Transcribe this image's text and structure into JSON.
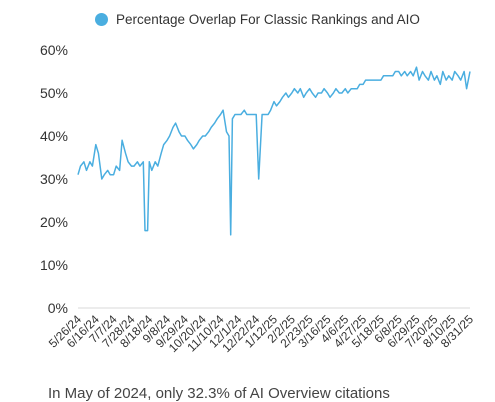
{
  "chart_data": {
    "type": "line",
    "title": "",
    "xlabel": "",
    "ylabel": "",
    "series": [
      {
        "name": "Percentage Overlap For Classic Rankings and AIO",
        "color": "#4aaee0",
        "points": [
          [
            "2024-05-26",
            31
          ],
          [
            "2024-05-29",
            33
          ],
          [
            "2024-06-02",
            34
          ],
          [
            "2024-06-05",
            32
          ],
          [
            "2024-06-09",
            34
          ],
          [
            "2024-06-12",
            33
          ],
          [
            "2024-06-16",
            38
          ],
          [
            "2024-06-19",
            36
          ],
          [
            "2024-06-23",
            30
          ],
          [
            "2024-06-26",
            31
          ],
          [
            "2024-06-30",
            32
          ],
          [
            "2024-07-03",
            31
          ],
          [
            "2024-07-07",
            31
          ],
          [
            "2024-07-10",
            33
          ],
          [
            "2024-07-14",
            32
          ],
          [
            "2024-07-17",
            39
          ],
          [
            "2024-07-21",
            36
          ],
          [
            "2024-07-24",
            34
          ],
          [
            "2024-07-28",
            33
          ],
          [
            "2024-07-31",
            33
          ],
          [
            "2024-08-04",
            34
          ],
          [
            "2024-08-07",
            33
          ],
          [
            "2024-08-11",
            34
          ],
          [
            "2024-08-13",
            18
          ],
          [
            "2024-08-16",
            18
          ],
          [
            "2024-08-18",
            34
          ],
          [
            "2024-08-21",
            32
          ],
          [
            "2024-08-25",
            34
          ],
          [
            "2024-08-28",
            33
          ],
          [
            "2024-09-01",
            36
          ],
          [
            "2024-09-04",
            38
          ],
          [
            "2024-09-08",
            39
          ],
          [
            "2024-09-11",
            40
          ],
          [
            "2024-09-15",
            42
          ],
          [
            "2024-09-18",
            43
          ],
          [
            "2024-09-22",
            41
          ],
          [
            "2024-09-25",
            40
          ],
          [
            "2024-09-29",
            40
          ],
          [
            "2024-10-02",
            39
          ],
          [
            "2024-10-06",
            38
          ],
          [
            "2024-10-09",
            37
          ],
          [
            "2024-10-13",
            38
          ],
          [
            "2024-10-16",
            39
          ],
          [
            "2024-10-20",
            40
          ],
          [
            "2024-10-23",
            40
          ],
          [
            "2024-10-27",
            41
          ],
          [
            "2024-10-30",
            42
          ],
          [
            "2024-11-03",
            43
          ],
          [
            "2024-11-06",
            44
          ],
          [
            "2024-11-10",
            45
          ],
          [
            "2024-11-13",
            46
          ],
          [
            "2024-11-17",
            41
          ],
          [
            "2024-11-20",
            40
          ],
          [
            "2024-11-22",
            17
          ],
          [
            "2024-11-24",
            44
          ],
          [
            "2024-11-27",
            45
          ],
          [
            "2024-12-01",
            45
          ],
          [
            "2024-12-04",
            45
          ],
          [
            "2024-12-08",
            46
          ],
          [
            "2024-12-11",
            45
          ],
          [
            "2024-12-15",
            45
          ],
          [
            "2024-12-18",
            45
          ],
          [
            "2024-12-22",
            45
          ],
          [
            "2024-12-25",
            30
          ],
          [
            "2024-12-29",
            45
          ],
          [
            "2025-01-01",
            45
          ],
          [
            "2025-01-05",
            45
          ],
          [
            "2025-01-08",
            46
          ],
          [
            "2025-01-12",
            48
          ],
          [
            "2025-01-15",
            47
          ],
          [
            "2025-01-19",
            48
          ],
          [
            "2025-01-22",
            49
          ],
          [
            "2025-01-26",
            50
          ],
          [
            "2025-01-29",
            49
          ],
          [
            "2025-02-02",
            50
          ],
          [
            "2025-02-05",
            51
          ],
          [
            "2025-02-09",
            50
          ],
          [
            "2025-02-12",
            51
          ],
          [
            "2025-02-16",
            49
          ],
          [
            "2025-02-19",
            50
          ],
          [
            "2025-02-23",
            51
          ],
          [
            "2025-02-26",
            50
          ],
          [
            "2025-03-02",
            49
          ],
          [
            "2025-03-05",
            50
          ],
          [
            "2025-03-09",
            50
          ],
          [
            "2025-03-12",
            51
          ],
          [
            "2025-03-16",
            50
          ],
          [
            "2025-03-19",
            49
          ],
          [
            "2025-03-23",
            50
          ],
          [
            "2025-03-26",
            51
          ],
          [
            "2025-03-30",
            50
          ],
          [
            "2025-04-02",
            50
          ],
          [
            "2025-04-06",
            51
          ],
          [
            "2025-04-09",
            50
          ],
          [
            "2025-04-13",
            51
          ],
          [
            "2025-04-16",
            51
          ],
          [
            "2025-04-20",
            51
          ],
          [
            "2025-04-23",
            52
          ],
          [
            "2025-04-27",
            52
          ],
          [
            "2025-04-30",
            53
          ],
          [
            "2025-05-04",
            53
          ],
          [
            "2025-05-07",
            53
          ],
          [
            "2025-05-11",
            53
          ],
          [
            "2025-05-14",
            53
          ],
          [
            "2025-05-18",
            53
          ],
          [
            "2025-05-21",
            54
          ],
          [
            "2025-05-25",
            54
          ],
          [
            "2025-05-28",
            54
          ],
          [
            "2025-06-01",
            54
          ],
          [
            "2025-06-04",
            55
          ],
          [
            "2025-06-08",
            55
          ],
          [
            "2025-06-11",
            54
          ],
          [
            "2025-06-15",
            55
          ],
          [
            "2025-06-18",
            54
          ],
          [
            "2025-06-22",
            55
          ],
          [
            "2025-06-25",
            54
          ],
          [
            "2025-06-29",
            56
          ],
          [
            "2025-07-02",
            53
          ],
          [
            "2025-07-06",
            55
          ],
          [
            "2025-07-09",
            54
          ],
          [
            "2025-07-13",
            53
          ],
          [
            "2025-07-16",
            55
          ],
          [
            "2025-07-20",
            53
          ],
          [
            "2025-07-23",
            54
          ],
          [
            "2025-07-27",
            52
          ],
          [
            "2025-07-30",
            55
          ],
          [
            "2025-08-03",
            53
          ],
          [
            "2025-08-06",
            54
          ],
          [
            "2025-08-10",
            53
          ],
          [
            "2025-08-13",
            55
          ],
          [
            "2025-08-17",
            54
          ],
          [
            "2025-08-20",
            53
          ],
          [
            "2025-08-24",
            55
          ],
          [
            "2025-08-27",
            51
          ],
          [
            "2025-08-31",
            55
          ]
        ]
      }
    ],
    "x_tick_labels": [
      "5/26/24",
      "6/16/24",
      "7/7/24",
      "7/28/24",
      "8/18/24",
      "9/8/24",
      "9/29/24",
      "10/20/24",
      "11/10/24",
      "12/1/24",
      "12/22/24",
      "1/12/25",
      "2/2/25",
      "2/23/25",
      "3/16/25",
      "4/6/25",
      "4/27/25",
      "5/18/25",
      "6/8/25",
      "6/29/25",
      "7/20/25",
      "8/10/25",
      "8/31/25"
    ],
    "x_tick_dates": [
      "2024-05-26",
      "2024-06-16",
      "2024-07-07",
      "2024-07-28",
      "2024-08-18",
      "2024-09-08",
      "2024-09-29",
      "2024-10-20",
      "2024-11-10",
      "2024-12-01",
      "2024-12-22",
      "2025-01-12",
      "2025-02-02",
      "2025-02-23",
      "2025-03-16",
      "2025-04-06",
      "2025-04-27",
      "2025-05-18",
      "2025-06-08",
      "2025-06-29",
      "2025-07-20",
      "2025-08-10",
      "2025-08-31"
    ],
    "y_tick_labels": [
      "0%",
      "10%",
      "20%",
      "30%",
      "40%",
      "50%",
      "60%"
    ],
    "y_ticks": [
      0,
      10,
      20,
      30,
      40,
      50,
      60
    ],
    "xlim": [
      "2024-05-26",
      "2025-08-31"
    ],
    "ylim": [
      0,
      60
    ],
    "grid": false,
    "legend": "top"
  },
  "note": "In May of 2024, only 32.3% of AI Overview citations"
}
